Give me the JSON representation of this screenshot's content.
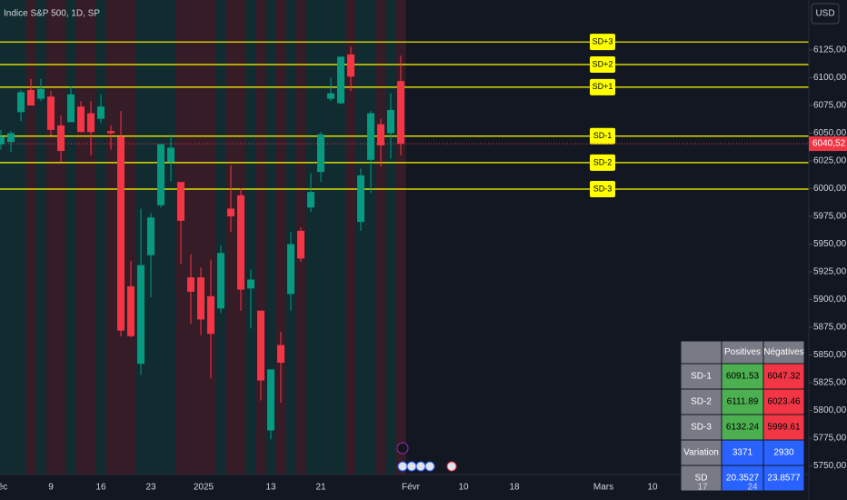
{
  "header": {
    "title": "Indice S&P 500, 1D, SP",
    "currency": "USD"
  },
  "chart_data": {
    "type": "candlestick",
    "up_color": "#089981",
    "down_color": "#f23645",
    "level_color": "#ffff00",
    "candles": {
      "open": [
        6040,
        6042,
        6069,
        6089,
        6081,
        6083,
        6057,
        6060,
        6074,
        6068,
        6063,
        6052,
        6047,
        5912,
        5842,
        5940,
        5985,
        6024,
        6006,
        5920,
        5920,
        5903,
        5892,
        5982,
        5994,
        5910,
        5890,
        5782,
        5859,
        5905,
        5962,
        5983,
        6015,
        6081,
        6077,
        6121,
        5970,
        6026,
        6058,
        6050,
        6097
      ],
      "high": [
        6053,
        6052,
        6089,
        6099,
        6099,
        6088,
        6066,
        6092,
        6079,
        6079,
        6085,
        6057,
        6070,
        5935,
        5982,
        5978,
        6040,
        6049,
        6006,
        5941,
        5929,
        5936,
        5949,
        6021,
        6000,
        5927,
        5890,
        5837,
        5871,
        5961,
        5965,
        6014,
        6051,
        6100,
        6119,
        6128,
        6018,
        6070,
        6063,
        6086,
        6120
      ],
      "low": [
        6035,
        6033,
        6061,
        6079,
        6079,
        6048,
        6024,
        6060,
        6051,
        6030,
        6059,
        6035,
        5867,
        5866,
        5832,
        5902,
        5983,
        6007,
        5932,
        5878,
        5868,
        5829,
        5888,
        5961,
        5890,
        5874,
        5809,
        5774,
        5807,
        5890,
        5934,
        5979,
        6006,
        6079,
        6076,
        6088,
        5962,
        5996,
        6020,
        6027,
        6030
      ],
      "close": [
        6047,
        6050,
        6087,
        6075,
        6090,
        6053,
        6034,
        6085,
        6051,
        6051,
        6074,
        6050,
        5872,
        5867,
        5931,
        5974,
        6040,
        6037,
        5971,
        5907,
        5882,
        5869,
        5942,
        5975,
        5909,
        5918,
        5827,
        5837,
        5843,
        5950,
        5937,
        5997,
        6049,
        6086,
        6119,
        6101,
        6012,
        6068,
        6039,
        6071,
        6040.52
      ]
    },
    "ylim": [
      5742.2,
      6170.1
    ],
    "yticks": [
      {
        "value": 5750,
        "label": "5750,00"
      },
      {
        "value": 5775,
        "label": "5775,00"
      },
      {
        "value": 5800,
        "label": "5800,00"
      },
      {
        "value": 5825,
        "label": "5825,00"
      },
      {
        "value": 5850,
        "label": "5850,00"
      },
      {
        "value": 5875,
        "label": "5875,00"
      },
      {
        "value": 5900,
        "label": "5900,00"
      },
      {
        "value": 5925,
        "label": "5925,00"
      },
      {
        "value": 5950,
        "label": "5950,00"
      },
      {
        "value": 5975,
        "label": "5975,00"
      },
      {
        "value": 6000,
        "label": "6000,00"
      },
      {
        "value": 6025,
        "label": "6025,00"
      },
      {
        "value": 6050,
        "label": "6050,00"
      },
      {
        "value": 6075,
        "label": "6075,00"
      },
      {
        "value": 6100,
        "label": "6100,00"
      },
      {
        "value": 6125,
        "label": "6125,00"
      }
    ],
    "x_labels": [
      "éc",
      "9",
      "16",
      "23",
      "2025",
      "13",
      "21",
      "Févr",
      "10",
      "18",
      "Mars",
      "10",
      "17",
      "24"
    ],
    "last_price": {
      "value": 6040.52,
      "label": "6040,52"
    },
    "levels": [
      {
        "label": "SD+1"
      },
      {
        "label": "SD+2"
      },
      {
        "label": "SD+3"
      },
      {
        "label": "SD-1"
      },
      {
        "label": "SD-2"
      },
      {
        "label": "SD-3"
      }
    ]
  },
  "table": {
    "columns": [
      "Positives",
      "Négatives"
    ],
    "rows": [
      {
        "label": "SD-1",
        "values": [
          6091.53,
          6047.32
        ]
      },
      {
        "label": "SD-2",
        "values": [
          6111.89,
          6023.46
        ]
      },
      {
        "label": "SD-3",
        "values": [
          6132.24,
          5999.61
        ]
      },
      {
        "label": "Variation",
        "values": [
          3371,
          2930
        ]
      },
      {
        "label": "SD",
        "values": [
          20.3527,
          23.8577
        ]
      }
    ]
  }
}
